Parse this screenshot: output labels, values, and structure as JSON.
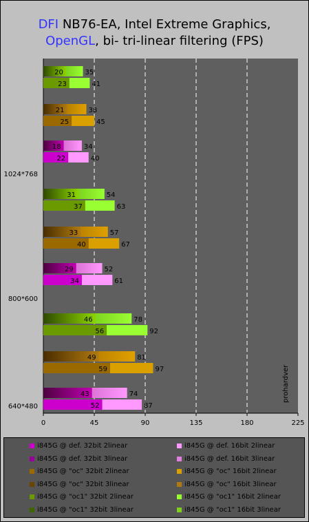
{
  "title": {
    "line1_brand": "DFI",
    "line1_rest": " NB76-EA, Intel Extreme Graphics,",
    "line2_brand": "OpenGL",
    "line2_rest": ", bi- tri-linear filtering (FPS)"
  },
  "watermark": "prohardver",
  "colors": {
    "background": "#c0c0c0",
    "plot_bg": "#5f5f5f",
    "legend_bg": "#555555",
    "brand": "#3333ff",
    "gridline": "#ffffff"
  },
  "chart_data": {
    "type": "bar",
    "orientation": "horizontal",
    "xlim": [
      0,
      225
    ],
    "xticks": [
      "0",
      "45",
      "90",
      "135",
      "180",
      "225"
    ],
    "grid": "vertical dashed",
    "legend_position": "bottom",
    "groups": [
      {
        "name": "1024*768",
        "pairs": [
          {
            "tri": 20,
            "bi": 35,
            "tri_dark": "#2f4a00",
            "tri_light": "#8cd400",
            "bi_dark": "#5a9a00",
            "bi_light": "#99ff33"
          },
          {
            "tri": 23,
            "bi": 41,
            "tri_dark": "#6b8a00",
            "tri_light": "#6b8a00",
            "bi_dark": "#99ff33",
            "bi_light": "#99ff33"
          }
        ],
        "oc": [
          {
            "tri": 21,
            "bi": 38,
            "tri_dark": "#4a2e00",
            "tri_light": "#b07a10",
            "bi_dark": "#8a5a00",
            "bi_light": "#e0a000"
          },
          {
            "tri": 25,
            "bi": 45,
            "tri_dark": "#9a6a00",
            "tri_light": "#9a6a00",
            "bi_dark": "#d9a000",
            "bi_light": "#d9a000"
          }
        ],
        "def": [
          {
            "tri": 18,
            "bi": 34,
            "tri_dark": "#4d0040",
            "tri_light": "#c000b0",
            "bi_dark": "#b040a0",
            "bi_light": "#ff99ff"
          },
          {
            "tri": 22,
            "bi": 40,
            "tri_dark": "#cc00cc",
            "tri_light": "#cc00cc",
            "bi_dark": "#ff99ff",
            "bi_light": "#ff99ff"
          }
        ]
      },
      {
        "name": "800*600",
        "oc1": [
          {
            "tri": 31,
            "bi": 54
          },
          {
            "tri": 37,
            "bi": 63
          }
        ],
        "oc": [
          {
            "tri": 33,
            "bi": 57
          },
          {
            "tri": 40,
            "bi": 67
          }
        ],
        "def": [
          {
            "tri": 29,
            "bi": 52
          },
          {
            "tri": 34,
            "bi": 61
          }
        ]
      },
      {
        "name": "640*480",
        "oc1": [
          {
            "tri": 46,
            "bi": 78
          },
          {
            "tri": 56,
            "bi": 92
          }
        ],
        "oc": [
          {
            "tri": 49,
            "bi": 81
          },
          {
            "tri": 59,
            "bi": 97
          }
        ],
        "def": [
          {
            "tri": 43,
            "bi": 74
          },
          {
            "tri": 52,
            "bi": 87
          }
        ]
      }
    ],
    "series": [
      {
        "name": "i845G @ def. 32bit 2linear",
        "color": "#cc00cc"
      },
      {
        "name": "i845G @ def. 16bit 2linear",
        "color": "#ff99ff"
      },
      {
        "name": "i845G @ def. 32bit 3linear",
        "color": "#990099"
      },
      {
        "name": "i845G @ def. 16bit 3linear",
        "color": "#e080e0"
      },
      {
        "name": "i845G @ \"oc\" 32bit 2linear",
        "color": "#9a6a00"
      },
      {
        "name": "i845G @ \"oc\" 16bit 2linear",
        "color": "#d9a000"
      },
      {
        "name": "i845G @ \"oc\" 32bit 3linear",
        "color": "#6b4500"
      },
      {
        "name": "i845G @ \"oc\" 16bit 3linear",
        "color": "#b07a10"
      },
      {
        "name": "i845G @ \"oc1\" 32bit 2linear",
        "color": "#6b9a00"
      },
      {
        "name": "i845G @ \"oc1\" 16bit 2linear",
        "color": "#99ff33"
      },
      {
        "name": "i845G @ \"oc1\" 32bit 3linear",
        "color": "#3d6600"
      },
      {
        "name": "i845G @ \"oc1\" 16bit 3linear",
        "color": "#80d020"
      }
    ]
  }
}
